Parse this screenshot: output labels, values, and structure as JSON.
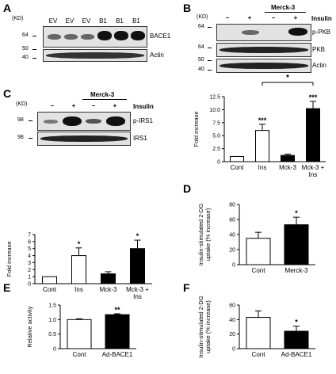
{
  "panels": {
    "A": {
      "letter": "A",
      "kd_header": "(KD)",
      "lanes": [
        "EV",
        "EV",
        "EV",
        "B1",
        "B1",
        "B1"
      ],
      "rows": [
        "BACE1",
        "Actin"
      ],
      "markers": [
        "64",
        "50",
        "40"
      ]
    },
    "B": {
      "letter": "B",
      "kd_header": "(KD)",
      "group_label": "Merck-3",
      "condition_label": "Insulin",
      "signs": [
        "–",
        "+",
        "–",
        "+"
      ],
      "rows": [
        "p-PKB",
        "PKB",
        "Actin"
      ],
      "markers": [
        "64",
        "64",
        "50",
        "40"
      ]
    },
    "C": {
      "letter": "C",
      "kd_header": "(KD)",
      "group_label": "Merck-3",
      "condition_label": "Insulin",
      "signs": [
        "–",
        "+",
        "–",
        "+"
      ],
      "rows": [
        "p-IRS1",
        "IRS1"
      ],
      "markers": [
        "98",
        "98"
      ]
    },
    "D": {
      "letter": "D"
    },
    "E": {
      "letter": "E"
    },
    "F": {
      "letter": "F"
    }
  },
  "chart_data": [
    {
      "id": "B_bar",
      "type": "bar",
      "categories": [
        "Cont",
        "Ins",
        "Mck-3",
        "Mck-3 +\nIns"
      ],
      "values": [
        1.0,
        6.0,
        1.2,
        10.2
      ],
      "errors": [
        0.0,
        1.2,
        0.25,
        1.4
      ],
      "fills": [
        "#ffffff",
        "#ffffff",
        "#000000",
        "#000000"
      ],
      "annotations": [
        "",
        "***",
        "",
        "***"
      ],
      "bracket": {
        "from": 1,
        "to": 3,
        "label": "*"
      },
      "ylabel": "Fold increase",
      "ylim": [
        0,
        12.5
      ],
      "yticks": [
        0,
        2.5,
        5.0,
        7.5,
        10.0,
        12.5
      ],
      "ytick_labels": [
        "0",
        "2.5",
        "5.0",
        "7.5",
        "10.0",
        "12.5"
      ]
    },
    {
      "id": "C_bar",
      "type": "bar",
      "categories": [
        "Cont",
        "Ins",
        "Mck-3",
        "Mck-3 +\nIns"
      ],
      "values": [
        1.0,
        4.0,
        1.4,
        5.0
      ],
      "errors": [
        0.0,
        1.1,
        0.3,
        1.2
      ],
      "fills": [
        "#ffffff",
        "#ffffff",
        "#000000",
        "#000000"
      ],
      "annotations": [
        "",
        "*",
        "",
        "*"
      ],
      "ylabel": "Fold increase",
      "ylim": [
        0,
        7
      ],
      "yticks": [
        0,
        1,
        2,
        3,
        4,
        5,
        6,
        7
      ],
      "ytick_labels": [
        "0",
        "1",
        "2",
        "3",
        "4",
        "5",
        "6",
        "7"
      ]
    },
    {
      "id": "D_bar",
      "type": "bar",
      "categories": [
        "Cont",
        "Merck-3"
      ],
      "values": [
        35,
        53
      ],
      "errors": [
        8,
        10
      ],
      "fills": [
        "#ffffff",
        "#000000"
      ],
      "annotations": [
        "",
        "*"
      ],
      "ylabel": "Insulin-stimulated 2-DG\nuptake (% increase)",
      "ylim": [
        0,
        80
      ],
      "yticks": [
        0,
        20,
        40,
        60,
        80
      ],
      "ytick_labels": [
        "0",
        "20",
        "40",
        "60",
        "80"
      ]
    },
    {
      "id": "E_bar",
      "type": "bar",
      "categories": [
        "Cont",
        "Ad-BACE1"
      ],
      "values": [
        1.0,
        1.17
      ],
      "errors": [
        0.03,
        0.03
      ],
      "fills": [
        "#ffffff",
        "#000000"
      ],
      "annotations": [
        "",
        "**"
      ],
      "ylabel": "Relative activity",
      "ylim": [
        0,
        1.5
      ],
      "yticks": [
        0,
        0.5,
        1.0,
        1.5
      ],
      "ytick_labels": [
        "0",
        "0.5",
        "1.0",
        "1.5"
      ]
    },
    {
      "id": "F_bar",
      "type": "bar",
      "categories": [
        "Cont",
        "Ad-BACE1"
      ],
      "values": [
        43,
        24
      ],
      "errors": [
        9,
        7
      ],
      "fills": [
        "#ffffff",
        "#000000"
      ],
      "annotations": [
        "",
        "*"
      ],
      "ylabel": "Insulin-stimulated 2-DG\nuptake (% increase)",
      "ylim": [
        0,
        60
      ],
      "yticks": [
        0,
        20,
        40,
        60
      ],
      "ytick_labels": [
        "0",
        "20",
        "40",
        "60"
      ]
    }
  ]
}
